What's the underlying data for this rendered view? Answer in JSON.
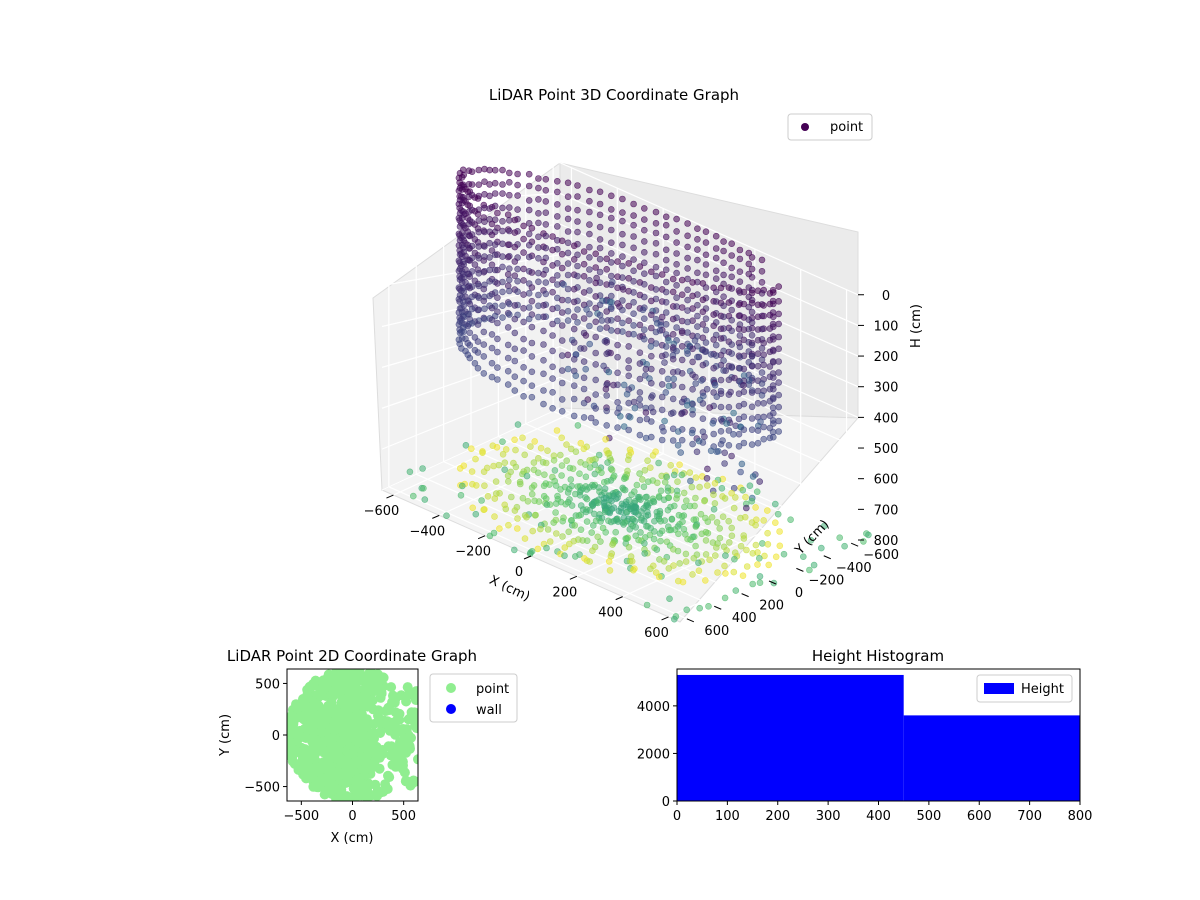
{
  "chart_data": [
    {
      "type": "scatter",
      "title": "LiDAR Point 3D Coordinate Graph",
      "xlabel": "X (cm)",
      "ylabel": "Y (cm)",
      "zlabel": "H (cm)",
      "x_ticks": [
        "−600",
        "−400",
        "−200",
        "0",
        "200",
        "400",
        "600"
      ],
      "y_ticks": [
        "−600",
        "−400",
        "−200",
        "0",
        "200",
        "400",
        "600"
      ],
      "z_ticks": [
        "0",
        "100",
        "200",
        "300",
        "400",
        "500",
        "600",
        "700",
        "800"
      ],
      "xlim": [
        -650,
        650
      ],
      "ylim": [
        -650,
        650
      ],
      "zlim": [
        0,
        800
      ],
      "z_inverted": true,
      "legend": {
        "placement": "upper-right",
        "entries": [
          "point"
        ]
      },
      "colormap": "viridis",
      "grid": true,
      "note_on_data": "dense circular ring of points at radius ~600 cm spanning heights ~0-450 cm, with a fan of floor points converging toward the origin; data approximated",
      "series": [
        {
          "name": "point",
          "ring_radius_cm": 600,
          "ring_h_range_cm": [
            0,
            450
          ],
          "floor_h_cm": 800
        }
      ]
    },
    {
      "type": "scatter",
      "title": "LiDAR Point 2D Coordinate Graph",
      "xlabel": "X (cm)",
      "ylabel": "Y (cm)",
      "x_ticks": [
        "−500",
        "0",
        "500"
      ],
      "y_ticks": [
        "−500",
        "0",
        "500"
      ],
      "xlim": [
        -640,
        640
      ],
      "ylim": [
        -640,
        640
      ],
      "legend": {
        "placement": "outside-right",
        "entries": [
          "point",
          "wall"
        ]
      },
      "series": [
        {
          "name": "point",
          "color": "#90ee90"
        },
        {
          "name": "wall",
          "color": "#0000ff"
        }
      ]
    },
    {
      "type": "bar",
      "title": "Height Histogram",
      "xlabel": "",
      "ylabel": "",
      "x_ticks": [
        "0",
        "100",
        "200",
        "300",
        "400",
        "500",
        "600",
        "700",
        "800"
      ],
      "y_ticks": [
        "0",
        "2000",
        "4000"
      ],
      "xlim": [
        0,
        800
      ],
      "ylim": [
        0,
        5550
      ],
      "legend": {
        "placement": "upper-right",
        "entries": [
          "Height"
        ]
      },
      "bins": [
        {
          "from": 0,
          "to": 450,
          "count": 5300
        },
        {
          "from": 450,
          "to": 800,
          "count": 3600
        }
      ],
      "series": [
        {
          "name": "Height",
          "color": "#0000ff"
        }
      ]
    }
  ]
}
